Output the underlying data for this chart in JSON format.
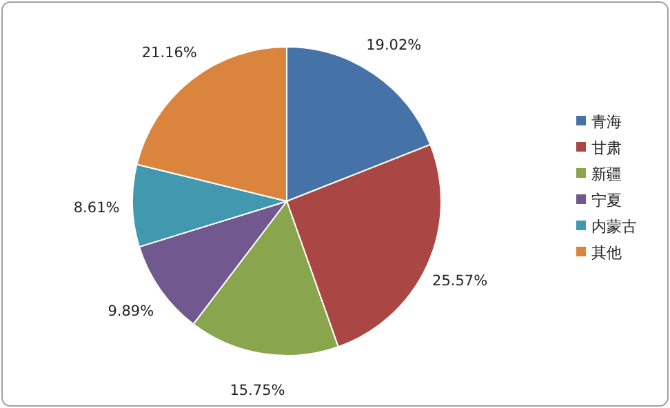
{
  "chart_data": {
    "type": "pie",
    "categories": [
      "青海",
      "甘肃",
      "新疆",
      "宁夏",
      "内蒙古",
      "其他"
    ],
    "values": [
      19.02,
      25.57,
      15.75,
      9.89,
      8.61,
      21.16
    ],
    "colors": [
      "#4572a7",
      "#aa4643",
      "#89a54e",
      "#71588f",
      "#4198af",
      "#db843d"
    ],
    "value_labels": [
      "19.02%",
      "25.57%",
      "15.75%",
      "9.89%",
      "8.61%",
      "21.16%"
    ],
    "legend": "right"
  }
}
